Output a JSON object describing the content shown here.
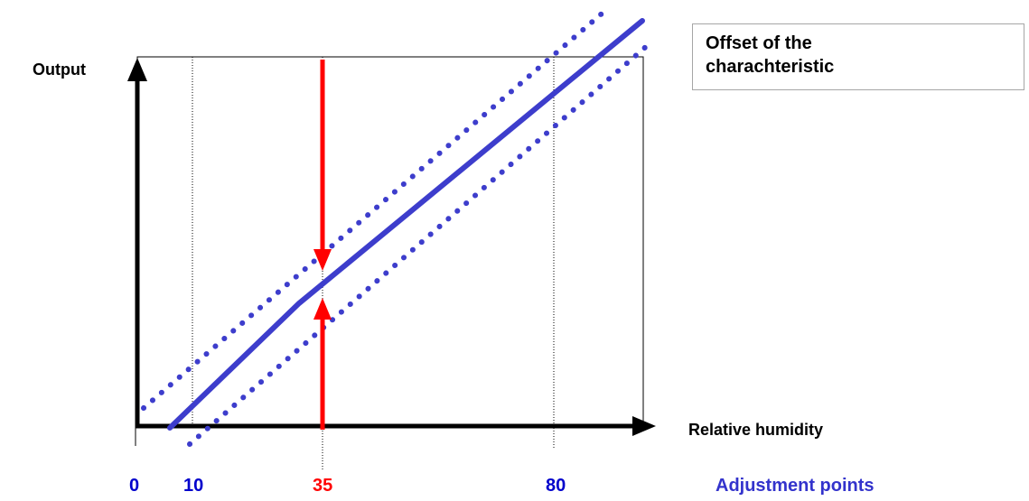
{
  "axes": {
    "y_label": "Output",
    "x_label": "Relative humidity"
  },
  "legend": {
    "line1": "Offset of the",
    "line2": "charachteristic"
  },
  "x_ticks": [
    {
      "value": "0",
      "color": "#0000cc"
    },
    {
      "value": "10",
      "color": "#0000cc"
    },
    {
      "value": "35",
      "color": "#ff0000"
    },
    {
      "value": "80",
      "color": "#0000cc"
    }
  ],
  "adjustment_label": "Adjustment points",
  "colors": {
    "characteristic": "#3d3dcc",
    "arrow": "#ff0000",
    "axes": "#000000",
    "label_blue": "#3333cc"
  }
}
